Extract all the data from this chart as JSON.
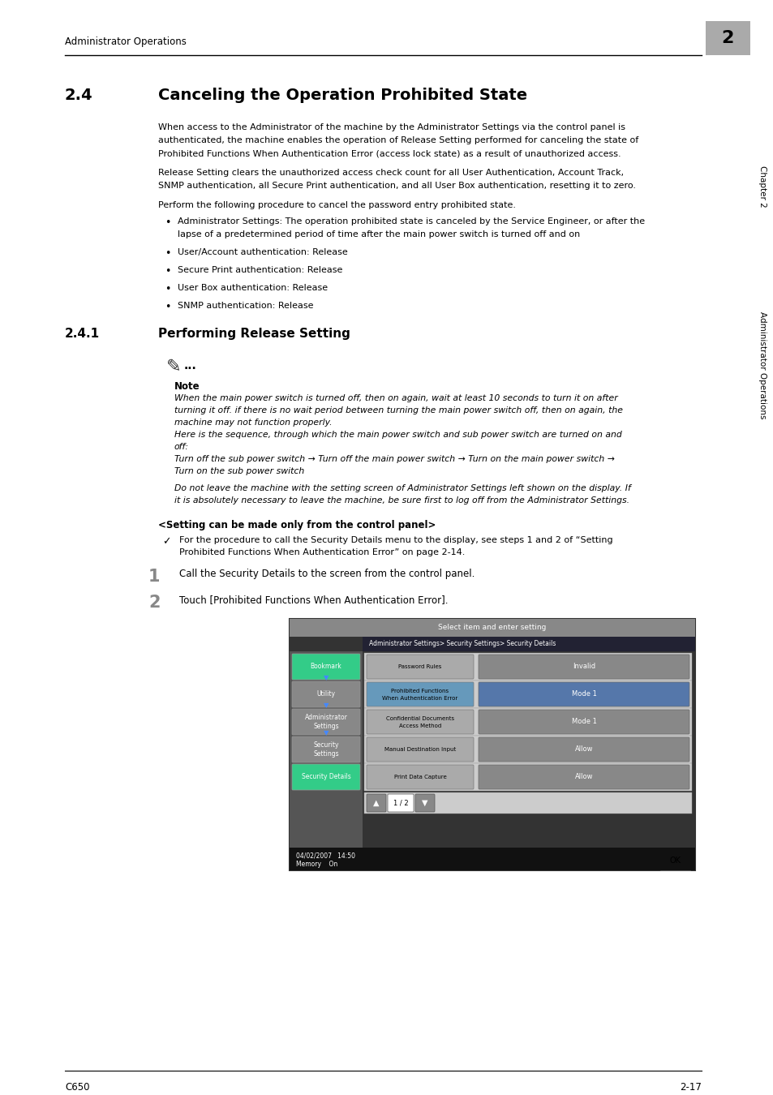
{
  "page_width": 9.54,
  "page_height": 13.5,
  "bg_color": "#ffffff",
  "header_text": "Administrator Operations",
  "header_chapter": "2",
  "footer_left": "C650",
  "footer_right": "2-17",
  "sidebar_text": "Administrator Operations",
  "sidebar_chapter": "Chapter 2",
  "section_number": "2.4",
  "section_title": "Canceling the Operation Prohibited State",
  "para1_lines": [
    "When access to the Administrator of the machine by the Administrator Settings via the control panel is",
    "authenticated, the machine enables the operation of Release Setting performed for canceling the state of",
    "Prohibited Functions When Authentication Error (access lock state) as a result of unauthorized access."
  ],
  "para2_lines": [
    "Release Setting clears the unauthorized access check count for all User Authentication, Account Track,",
    "SNMP authentication, all Secure Print authentication, and all User Box authentication, resetting it to zero."
  ],
  "para3": "Perform the following procedure to cancel the password entry prohibited state.",
  "bullets": [
    [
      "Administrator Settings: The operation prohibited state is canceled by the Service Engineer, or after the",
      "lapse of a predetermined period of time after the main power switch is turned off and on"
    ],
    [
      "User/Account authentication: Release"
    ],
    [
      "Secure Print authentication: Release"
    ],
    [
      "User Box authentication: Release"
    ],
    [
      "SNMP authentication: Release"
    ]
  ],
  "subsection_number": "2.4.1",
  "subsection_title": "Performing Release Setting",
  "note_label": "Note",
  "note_lines": [
    "When the main power switch is turned off, then on again, wait at least 10 seconds to turn it on after",
    "turning it off. if there is no wait period between turning the main power switch off, then on again, the",
    "machine may not function properly.",
    "Here is the sequence, through which the main power switch and sub power switch are turned on and",
    "off:",
    "Turn off the sub power switch → Turn off the main power switch → Turn on the main power switch →",
    "Turn on the sub power switch"
  ],
  "note2_lines": [
    "Do not leave the machine with the setting screen of Administrator Settings left shown on the display. If",
    "it is absolutely necessary to leave the machine, be sure first to log off from the Administrator Settings."
  ],
  "setting_header": "<Setting can be made only from the control panel>",
  "checkmark_lines": [
    "For the procedure to call the Security Details menu to the display, see steps 1 and 2 of “Setting",
    "Prohibited Functions When Authentication Error” on page 2-14."
  ],
  "step1_text": "Call the Security Details to the screen from the control panel.",
  "step2_text": "Touch [Prohibited Functions When Authentication Error].",
  "screen_title": "Select item and enter setting",
  "screen_path": "Administrator Settings> Security Settings> Security Details",
  "screen_rows": [
    {
      "label": "Password Rules",
      "label2": "",
      "value": "Invalid",
      "highlight": false
    },
    {
      "label": "Prohibited Functions",
      "label2": "When Authentication Error",
      "value": "Mode 1",
      "highlight": true
    },
    {
      "label": "Confidential Documents",
      "label2": "Access Method",
      "value": "Mode 1",
      "highlight": false
    },
    {
      "label": "Manual Destination Input",
      "label2": "",
      "value": "Allow",
      "highlight": false
    },
    {
      "label": "Print Data Capture",
      "label2": "",
      "value": "Allow",
      "highlight": false
    }
  ],
  "screen_page": "1 / 2",
  "screen_datetime": "04/02/2007   14:50",
  "screen_memory": "Memory    On",
  "btn_bookmark_color": "#33cc88",
  "btn_utility_color": "#888888",
  "btn_adminsettings_color": "#888888",
  "btn_securitysettings_color": "#888888",
  "btn_securitydetails_color": "#33cc88"
}
